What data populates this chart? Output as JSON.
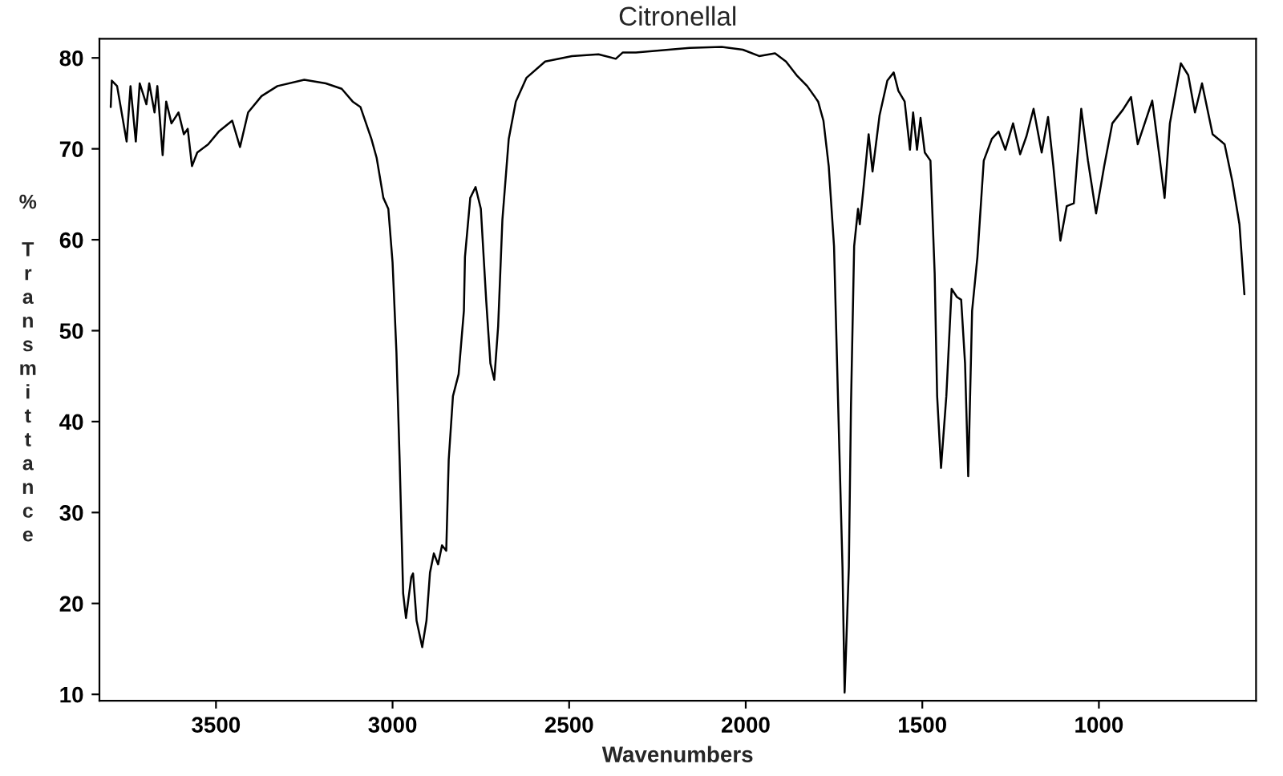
{
  "chart_data": {
    "type": "line",
    "title": "Citronellal",
    "xlabel": "Wavenumbers",
    "ylabel": "% Transmittance",
    "x": [
      3798,
      3795,
      3780,
      3753,
      3742,
      3727,
      3716,
      3697,
      3689,
      3674,
      3666,
      3651,
      3641,
      3626,
      3606,
      3591,
      3580,
      3568,
      3553,
      3522,
      3492,
      3454,
      3432,
      3409,
      3371,
      3326,
      3250,
      3189,
      3144,
      3113,
      3091,
      3060,
      3045,
      3026,
      3012,
      3000,
      2989,
      2980,
      2970,
      2962,
      2947,
      2942,
      2932,
      2916,
      2904,
      2894,
      2883,
      2871,
      2860,
      2848,
      2841,
      2829,
      2813,
      2798,
      2795,
      2780,
      2765,
      2750,
      2735,
      2723,
      2712,
      2701,
      2689,
      2671,
      2651,
      2621,
      2568,
      2492,
      2417,
      2368,
      2348,
      2311,
      2159,
      2068,
      2008,
      1962,
      1917,
      1886,
      1856,
      1826,
      1795,
      1780,
      1765,
      1750,
      1735,
      1726,
      1720,
      1708,
      1702,
      1693,
      1682,
      1677,
      1667,
      1652,
      1641,
      1621,
      1599,
      1581,
      1568,
      1550,
      1535,
      1526,
      1515,
      1505,
      1493,
      1477,
      1465,
      1458,
      1447,
      1432,
      1417,
      1402,
      1390,
      1379,
      1370,
      1359,
      1344,
      1326,
      1303,
      1284,
      1265,
      1243,
      1223,
      1205,
      1185,
      1162,
      1144,
      1129,
      1109,
      1091,
      1071,
      1050,
      1031,
      1008,
      985,
      962,
      932,
      909,
      890,
      849,
      829,
      814,
      799,
      768,
      747,
      728,
      708,
      678,
      644,
      622,
      602,
      588
    ],
    "series": [
      {
        "color": "#000000",
        "values": [
          74.6,
          77.5,
          76.9,
          70.8,
          76.9,
          70.8,
          77.2,
          74.9,
          77.2,
          74.0,
          76.9,
          69.3,
          75.2,
          72.8,
          74.0,
          71.6,
          72.2,
          68.1,
          69.6,
          70.5,
          71.9,
          73.1,
          70.2,
          74.0,
          75.8,
          76.9,
          77.6,
          77.2,
          76.6,
          75.2,
          74.6,
          71.1,
          69.0,
          64.6,
          63.4,
          57.5,
          47.6,
          35.8,
          21.1,
          18.4,
          22.9,
          23.3,
          18.1,
          15.2,
          18.1,
          23.4,
          25.5,
          24.3,
          26.4,
          25.8,
          35.8,
          42.8,
          45.2,
          52.2,
          58.1,
          64.6,
          65.8,
          63.4,
          53.4,
          46.4,
          44.6,
          50.5,
          62.2,
          71.1,
          75.2,
          77.8,
          79.6,
          80.2,
          80.4,
          79.9,
          80.6,
          80.6,
          81.1,
          81.2,
          80.9,
          80.2,
          80.5,
          79.6,
          78.1,
          76.9,
          75.2,
          73.1,
          68.1,
          59.3,
          37.0,
          24.0,
          10.2,
          24.0,
          41.7,
          59.3,
          63.4,
          61.7,
          65.5,
          71.6,
          67.5,
          73.7,
          77.5,
          78.4,
          76.4,
          75.2,
          69.9,
          74.0,
          69.9,
          73.4,
          69.6,
          68.7,
          56.3,
          42.8,
          34.9,
          42.8,
          54.6,
          53.7,
          53.4,
          46.4,
          34.0,
          52.2,
          58.1,
          68.7,
          71.1,
          71.9,
          69.9,
          72.8,
          69.4,
          71.4,
          74.4,
          69.6,
          73.5,
          68.1,
          59.9,
          63.7,
          64.0,
          74.4,
          68.7,
          62.9,
          68.1,
          72.8,
          74.3,
          75.7,
          70.5,
          75.3,
          69.3,
          64.6,
          72.8,
          79.4,
          78.1,
          74.0,
          77.2,
          71.6,
          70.5,
          66.4,
          61.7,
          54.0
        ]
      }
    ],
    "xlim": [
      3830,
      555
    ],
    "xticks": [
      3500,
      3000,
      2500,
      2000,
      1500,
      1000
    ],
    "ylim": [
      9.3,
      82.1
    ],
    "yticks": [
      10,
      20,
      30,
      40,
      50,
      60,
      70,
      80
    ],
    "grid": false,
    "legend": false,
    "marker": "none",
    "line_style": "solid"
  }
}
